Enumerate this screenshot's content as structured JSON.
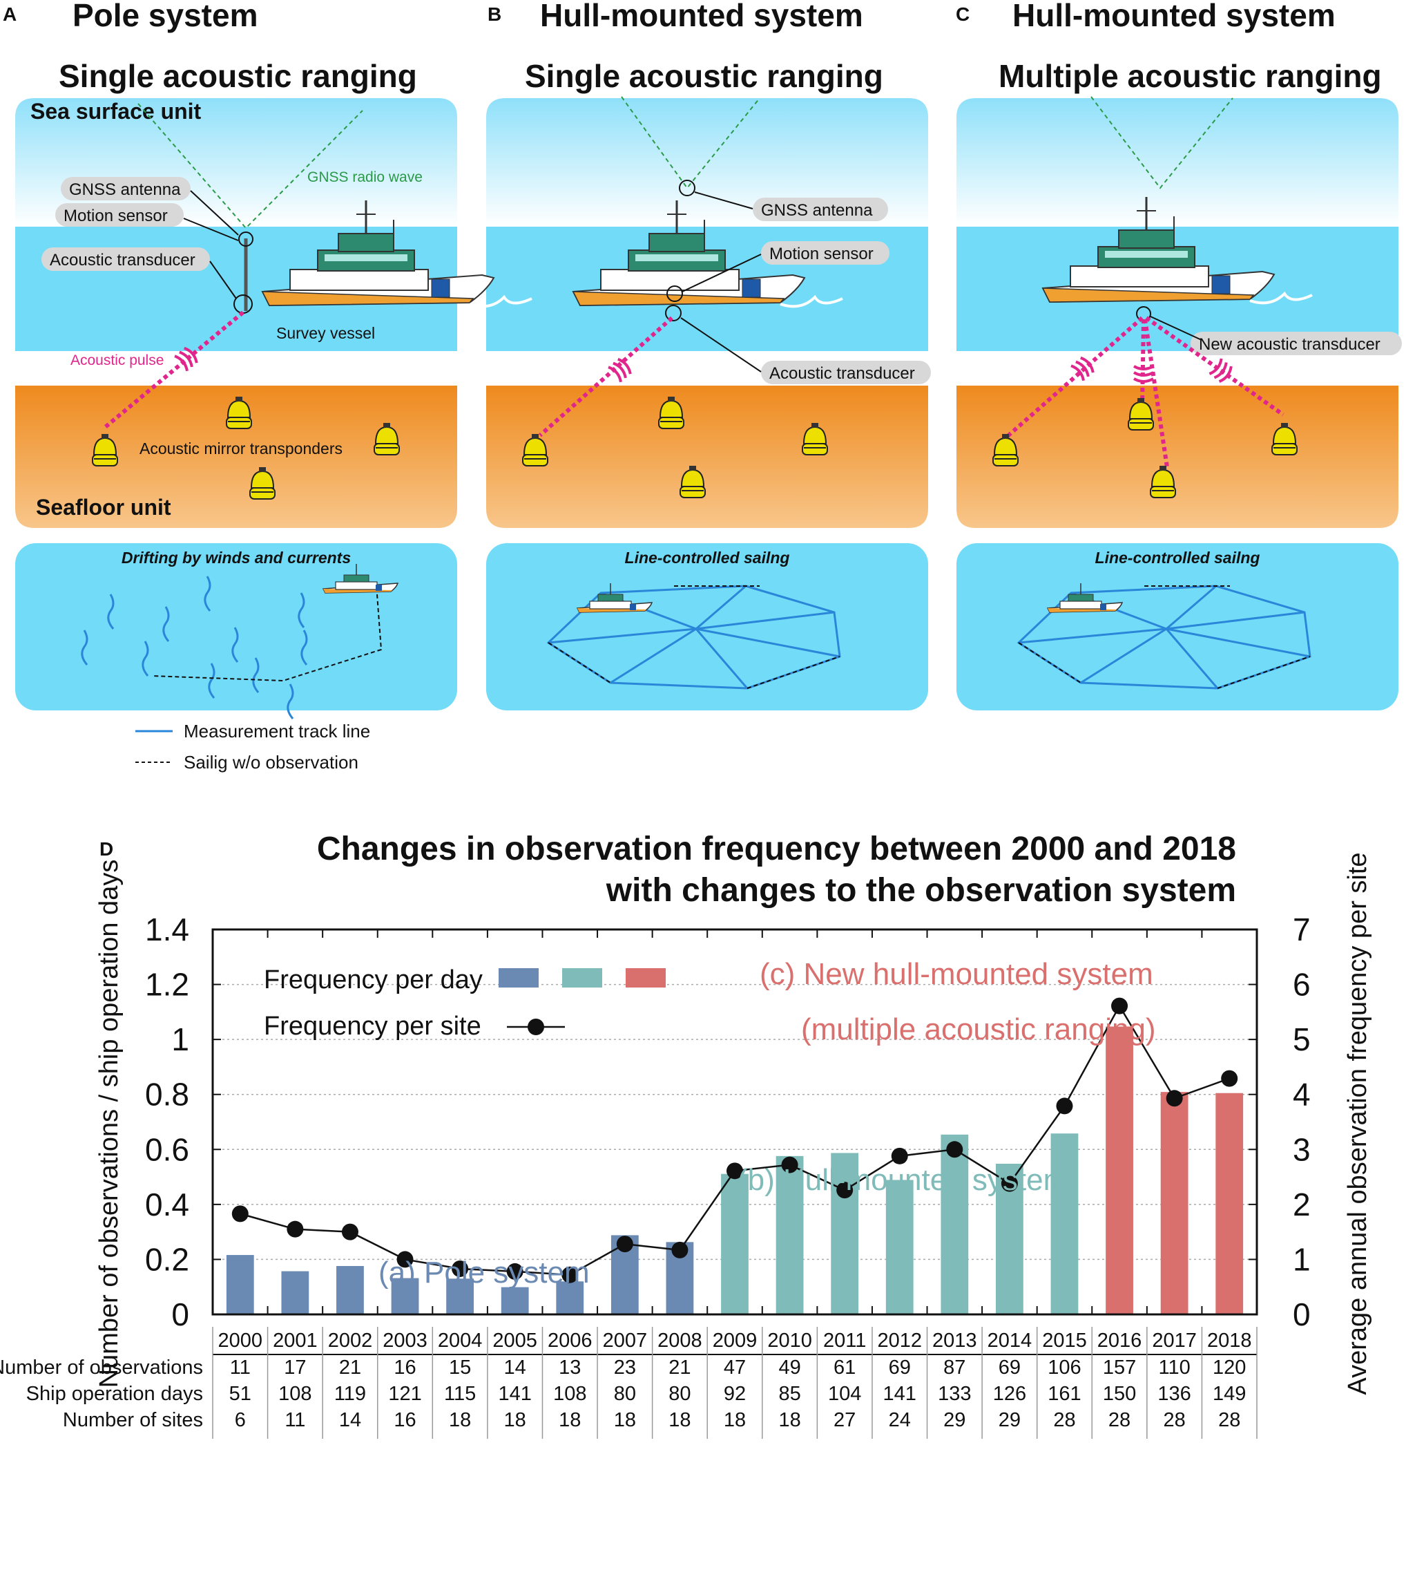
{
  "panels": {
    "A": {
      "letter": "A",
      "title": "Pole system",
      "subtitle": "Single acoustic ranging",
      "sea_surface_label": "Sea surface unit",
      "seafloor_label": "Seafloor unit",
      "gnss_antenna": "GNSS antenna",
      "motion_sensor": "Motion sensor",
      "acoustic_transducer": "Acoustic transducer",
      "gnss_wave": "GNSS radio wave",
      "survey_vessel": "Survey vessel",
      "acoustic_pulse": "Acoustic pulse",
      "transponders": "Acoustic mirror transponders",
      "track_caption": "Drifting by winds and currents"
    },
    "B": {
      "letter": "B",
      "title": "Hull-mounted system",
      "subtitle": "Single acoustic ranging",
      "gnss_antenna": "GNSS antenna",
      "motion_sensor": "Motion sensor",
      "acoustic_transducer": "Acoustic transducer",
      "track_caption": "Line-controlled sailng"
    },
    "C": {
      "letter": "C",
      "title": "Hull-mounted system",
      "subtitle": "Multiple acoustic ranging",
      "new_transducer": "New acoustic transducer",
      "track_caption": "Line-controlled sailng"
    }
  },
  "legend_bottom": {
    "measurement": "Measurement track line",
    "sailing": "Sailig w/o observation"
  },
  "colors": {
    "pole": "#6a8ab3",
    "hull": "#7fbbb8",
    "new_hull": "#d9706e",
    "sea": "#72dcf8",
    "seafloor": "#ef8e24",
    "pulse": "#e0268c",
    "gnss": "#2a9a48",
    "track": "#2a86d8"
  },
  "chart_data": {
    "letter": "D",
    "type": "bar",
    "title_line1": "Changes in observation frequency between 2000 and 2018",
    "title_line2": "with changes to the observation system",
    "ylabel_left": "Number of observations / ship operation days",
    "ylabel_right": "Average annual observation frequency per site",
    "ylim_left": [
      0,
      1.4
    ],
    "ylim_right": [
      0,
      7
    ],
    "yticks_left": [
      "0",
      "0.2",
      "0.4",
      "0.6",
      "0.8",
      "1",
      "1.2",
      "1.4"
    ],
    "yticks_right": [
      "0",
      "1",
      "2",
      "3",
      "4",
      "5",
      "6",
      "7"
    ],
    "categories": [
      "2000",
      "2001",
      "2002",
      "2003",
      "2004",
      "2005",
      "2006",
      "2007",
      "2008",
      "2009",
      "2010",
      "2011",
      "2012",
      "2013",
      "2014",
      "2015",
      "2016",
      "2017",
      "2018"
    ],
    "frequency_per_day": [
      0.216,
      0.157,
      0.176,
      0.132,
      0.13,
      0.099,
      0.12,
      0.288,
      0.263,
      0.511,
      0.576,
      0.587,
      0.489,
      0.654,
      0.548,
      0.658,
      1.047,
      0.809,
      0.805
    ],
    "frequency_per_site": [
      1.83,
      1.55,
      1.5,
      1.0,
      0.83,
      0.78,
      0.72,
      1.28,
      1.17,
      2.61,
      2.72,
      2.26,
      2.88,
      3.0,
      2.38,
      3.79,
      5.61,
      3.93,
      4.29
    ],
    "system_groups": [
      "pole",
      "pole",
      "pole",
      "pole",
      "pole",
      "pole",
      "pole",
      "pole",
      "pole",
      "hull",
      "hull",
      "hull",
      "hull",
      "hull",
      "hull",
      "hull",
      "new",
      "new",
      "new"
    ],
    "legend": {
      "per_day": "Frequency per day",
      "per_site": "Frequency per site"
    },
    "annotations": {
      "pole": "(a) Pole system",
      "hull": "(b) Hull-mounted system",
      "new_line1": "(c) New hull-mounted system",
      "new_line2": "(multiple acoustic ranging)"
    },
    "table": {
      "rows": [
        {
          "label": "Number of observations",
          "values": [
            "11",
            "17",
            "21",
            "16",
            "15",
            "14",
            "13",
            "23",
            "21",
            "47",
            "49",
            "61",
            "69",
            "87",
            "69",
            "106",
            "157",
            "110",
            "120"
          ]
        },
        {
          "label": "Ship operation days",
          "values": [
            "51",
            "108",
            "119",
            "121",
            "115",
            "141",
            "108",
            "80",
            "80",
            "92",
            "85",
            "104",
            "141",
            "133",
            "126",
            "161",
            "150",
            "136",
            "149"
          ]
        },
        {
          "label": "Number of sites",
          "values": [
            "6",
            "11",
            "14",
            "16",
            "18",
            "18",
            "18",
            "18",
            "18",
            "18",
            "18",
            "27",
            "24",
            "29",
            "29",
            "28",
            "28",
            "28",
            "28"
          ]
        }
      ]
    }
  }
}
